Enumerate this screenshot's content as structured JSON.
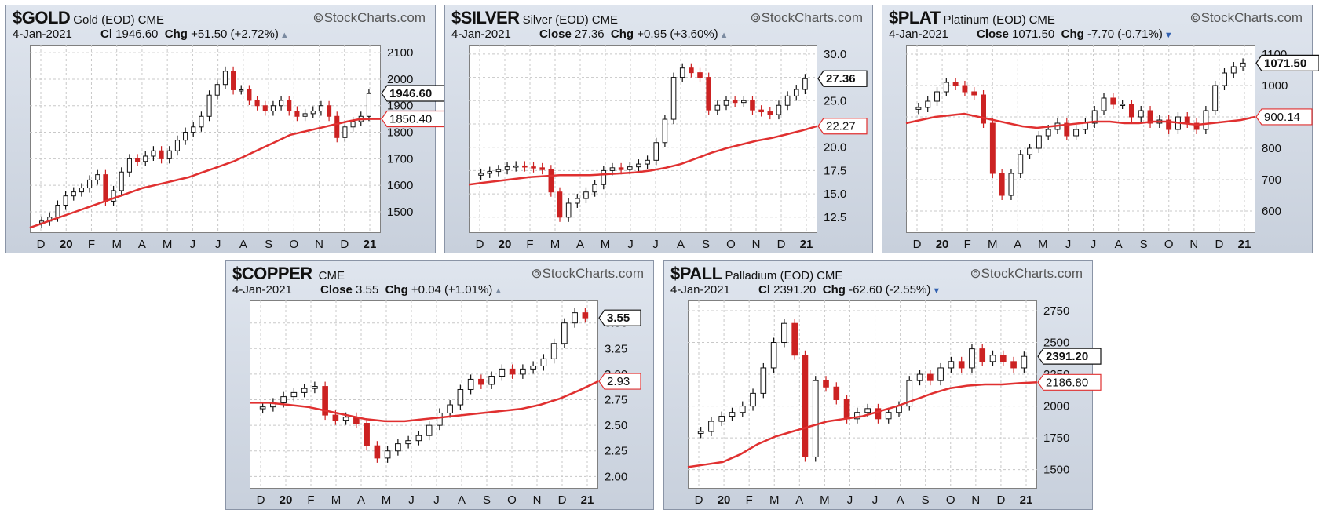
{
  "watermark": "StockCharts.com",
  "colors": {
    "up": "#111111",
    "down": "#cc2222",
    "ma": "#e03030",
    "grid": "#c8c8c8"
  },
  "charts": [
    {
      "symbol": "$GOLD",
      "name": "Gold (EOD)",
      "exchange": "CME",
      "date": "4-Jan-2021",
      "close_label": "Cl",
      "close": "1946.60",
      "chg_label": "Chg",
      "chg": "+51.50 (+2.72%)",
      "direction": "up",
      "last_tag": "1946.60",
      "ma_tag": "1850.40",
      "chart_data": {
        "type": "candlestick",
        "ylim": [
          1420,
          2130
        ],
        "yticks": [
          "1500",
          "1600",
          "1700",
          "1800",
          "1900",
          "2000",
          "2100"
        ],
        "x_labels": [
          "D",
          "20",
          "F",
          "M",
          "A",
          "M",
          "J",
          "J",
          "A",
          "S",
          "O",
          "N",
          "D",
          "21"
        ],
        "close_series": [
          1465,
          1480,
          1525,
          1560,
          1575,
          1590,
          1620,
          1640,
          1540,
          1580,
          1650,
          1700,
          1690,
          1710,
          1730,
          1700,
          1730,
          1770,
          1800,
          1820,
          1860,
          1940,
          1980,
          2030,
          1960,
          1960,
          1920,
          1900,
          1880,
          1900,
          1920,
          1880,
          1860,
          1870,
          1880,
          1900,
          1860,
          1780,
          1820,
          1840,
          1860,
          1946
        ],
        "ma_series": [
          1440,
          1455,
          1470,
          1485,
          1500,
          1515,
          1530,
          1545,
          1560,
          1575,
          1590,
          1600,
          1610,
          1620,
          1630,
          1645,
          1660,
          1675,
          1690,
          1710,
          1730,
          1750,
          1770,
          1790,
          1800,
          1810,
          1820,
          1830,
          1840,
          1848,
          1850,
          1850
        ]
      }
    },
    {
      "symbol": "$SILVER",
      "name": "Silver (EOD)",
      "exchange": "CME",
      "date": "4-Jan-2021",
      "close_label": "Close",
      "close": "27.36",
      "chg_label": "Chg",
      "chg": "+0.95 (+3.60%)",
      "direction": "up",
      "last_tag": "27.36",
      "ma_tag": "22.27",
      "chart_data": {
        "type": "candlestick",
        "ylim": [
          10.8,
          31.0
        ],
        "yticks": [
          "12.5",
          "15.0",
          "17.5",
          "20.0",
          "22.5",
          "25.0",
          "27.5",
          "30.0"
        ],
        "x_labels": [
          "D",
          "20",
          "F",
          "M",
          "A",
          "M",
          "J",
          "J",
          "A",
          "S",
          "O",
          "N",
          "D",
          "21"
        ],
        "close_series": [
          17.2,
          17.4,
          17.6,
          17.9,
          18.0,
          17.9,
          17.8,
          17.6,
          15.2,
          12.5,
          14.0,
          14.5,
          15.2,
          16.0,
          17.5,
          17.8,
          17.6,
          17.9,
          18.2,
          18.6,
          20.5,
          23.0,
          27.5,
          28.5,
          28.0,
          27.5,
          24.0,
          24.5,
          25.0,
          24.8,
          25.0,
          24.0,
          23.8,
          23.5,
          24.5,
          25.5,
          26.2,
          27.36
        ],
        "ma_series": [
          16.0,
          16.2,
          16.4,
          16.6,
          16.8,
          16.9,
          17.0,
          17.0,
          17.0,
          17.1,
          17.2,
          17.3,
          17.5,
          17.8,
          18.2,
          18.8,
          19.4,
          19.9,
          20.3,
          20.7,
          21.0,
          21.4,
          21.8,
          22.27
        ]
      }
    },
    {
      "symbol": "$PLAT",
      "name": "Platinum (EOD)",
      "exchange": "CME",
      "date": "4-Jan-2021",
      "close_label": "Close",
      "close": "1071.50",
      "chg_label": "Chg",
      "chg": "-7.70 (-0.71%)",
      "direction": "down",
      "last_tag": "1071.50",
      "ma_tag": "900.14",
      "chart_data": {
        "type": "candlestick",
        "ylim": [
          530,
          1130
        ],
        "yticks": [
          "600",
          "700",
          "800",
          "900",
          "1000",
          "1100"
        ],
        "x_labels": [
          "D",
          "20",
          "F",
          "M",
          "A",
          "M",
          "J",
          "J",
          "A",
          "S",
          "O",
          "N",
          "D",
          "21"
        ],
        "close_series": [
          930,
          950,
          980,
          1010,
          1000,
          980,
          970,
          880,
          720,
          650,
          720,
          780,
          800,
          840,
          860,
          880,
          840,
          860,
          880,
          920,
          960,
          940,
          940,
          900,
          920,
          880,
          890,
          860,
          900,
          880,
          860,
          920,
          1000,
          1040,
          1060,
          1071.5
        ],
        "ma_series": [
          880,
          890,
          900,
          905,
          910,
          900,
          890,
          880,
          870,
          865,
          870,
          875,
          880,
          885,
          885,
          880,
          880,
          885,
          885,
          880,
          875,
          880,
          885,
          890,
          900.14
        ]
      }
    },
    {
      "symbol": "$COPPER",
      "name": "",
      "exchange": "CME",
      "date": "4-Jan-2021",
      "close_label": "Close",
      "close": "3.55",
      "chg_label": "Chg",
      "chg": "+0.04 (+1.01%)",
      "direction": "up",
      "last_tag": "3.55",
      "ma_tag": "2.93",
      "chart_data": {
        "type": "candlestick",
        "ylim": [
          1.88,
          3.72
        ],
        "yticks": [
          "2.00",
          "2.25",
          "2.50",
          "2.75",
          "3.00",
          "3.25",
          "3.50"
        ],
        "x_labels": [
          "D",
          "20",
          "F",
          "M",
          "A",
          "M",
          "J",
          "J",
          "A",
          "S",
          "O",
          "N",
          "D",
          "21"
        ],
        "close_series": [
          2.68,
          2.72,
          2.78,
          2.82,
          2.86,
          2.88,
          2.6,
          2.55,
          2.58,
          2.52,
          2.3,
          2.18,
          2.25,
          2.32,
          2.35,
          2.4,
          2.5,
          2.62,
          2.7,
          2.85,
          2.95,
          2.9,
          2.98,
          3.05,
          3.0,
          3.05,
          3.08,
          3.15,
          3.3,
          3.5,
          3.6,
          3.55
        ],
        "ma_series": [
          2.72,
          2.72,
          2.7,
          2.68,
          2.64,
          2.6,
          2.56,
          2.54,
          2.54,
          2.56,
          2.58,
          2.6,
          2.62,
          2.64,
          2.66,
          2.7,
          2.76,
          2.84,
          2.93
        ]
      }
    },
    {
      "symbol": "$PALL",
      "name": "Palladium (EOD)",
      "exchange": "CME",
      "date": "4-Jan-2021",
      "close_label": "Cl",
      "close": "2391.20",
      "chg_label": "Chg",
      "chg": "-62.60 (-2.55%)",
      "direction": "down",
      "last_tag": "2391.20",
      "ma_tag": "2186.80",
      "chart_data": {
        "type": "candlestick",
        "ylim": [
          1350,
          2830
        ],
        "yticks": [
          "1500",
          "1750",
          "2000",
          "2250",
          "2500",
          "2750"
        ],
        "x_labels": [
          "D",
          "20",
          "F",
          "M",
          "A",
          "M",
          "J",
          "J",
          "A",
          "S",
          "O",
          "N",
          "D",
          "21"
        ],
        "close_series": [
          1800,
          1880,
          1920,
          1950,
          2000,
          2100,
          2300,
          2500,
          2650,
          2400,
          1600,
          2200,
          2150,
          2050,
          1900,
          1950,
          1980,
          1900,
          1950,
          2000,
          2200,
          2250,
          2200,
          2300,
          2350,
          2300,
          2450,
          2350,
          2400,
          2350,
          2300,
          2391
        ],
        "ma_series": [
          1520,
          1540,
          1560,
          1620,
          1700,
          1760,
          1800,
          1840,
          1880,
          1900,
          1920,
          1960,
          2000,
          2050,
          2100,
          2140,
          2160,
          2170,
          2170,
          2180,
          2186.8
        ]
      }
    }
  ]
}
